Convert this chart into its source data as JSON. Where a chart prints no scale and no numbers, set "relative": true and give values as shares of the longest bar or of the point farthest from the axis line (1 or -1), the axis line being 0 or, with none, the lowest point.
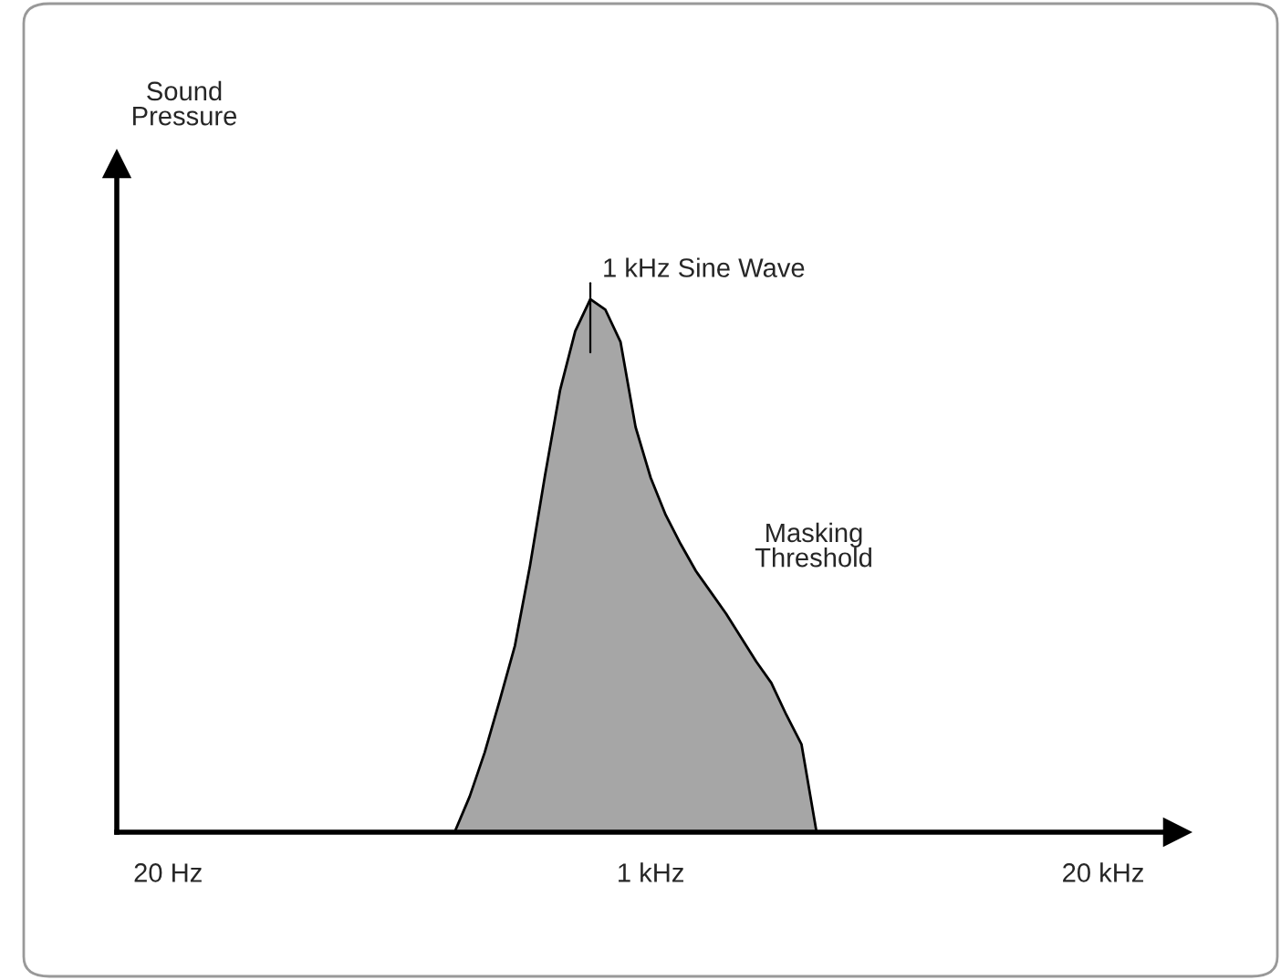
{
  "chart_data": {
    "type": "area",
    "relative": true,
    "color": "#a6a6a6",
    "categories": [
      "20 Hz",
      null,
      null,
      null,
      null,
      null,
      null,
      null,
      null,
      null,
      null,
      null,
      null,
      null,
      null,
      null,
      null,
      null,
      null,
      null,
      null,
      null,
      null,
      null,
      null,
      null,
      null,
      null,
      null,
      null,
      null,
      null,
      "1 kHz",
      null,
      null,
      null,
      null,
      null,
      null,
      null,
      null,
      null,
      null,
      null,
      null,
      null,
      null,
      null,
      null,
      null,
      null,
      null,
      null,
      null,
      null,
      null,
      null,
      null,
      null,
      null,
      null,
      null,
      "20 kHz"
    ],
    "values": [
      null,
      null,
      null,
      null,
      null,
      null,
      null,
      null,
      null,
      null,
      null,
      null,
      null,
      null,
      null,
      null,
      null,
      null,
      null,
      0,
      0.067,
      0.15,
      0.248,
      0.35,
      0.5,
      0.67,
      0.83,
      0.94,
      1,
      0.98,
      0.92,
      0.76,
      0.665,
      0.595,
      0.54,
      0.49,
      0.45,
      0.41,
      0.365,
      0.32,
      0.28,
      0.22,
      0.165,
      0,
      null,
      null,
      null,
      null,
      null,
      null,
      null,
      null,
      null,
      null,
      null,
      null,
      null,
      null,
      null,
      null,
      null,
      null,
      null
    ],
    "annotations": [
      "Sound\nPressure",
      "1 kHz Sine Wave",
      "Masking\nThreshold"
    ]
  }
}
